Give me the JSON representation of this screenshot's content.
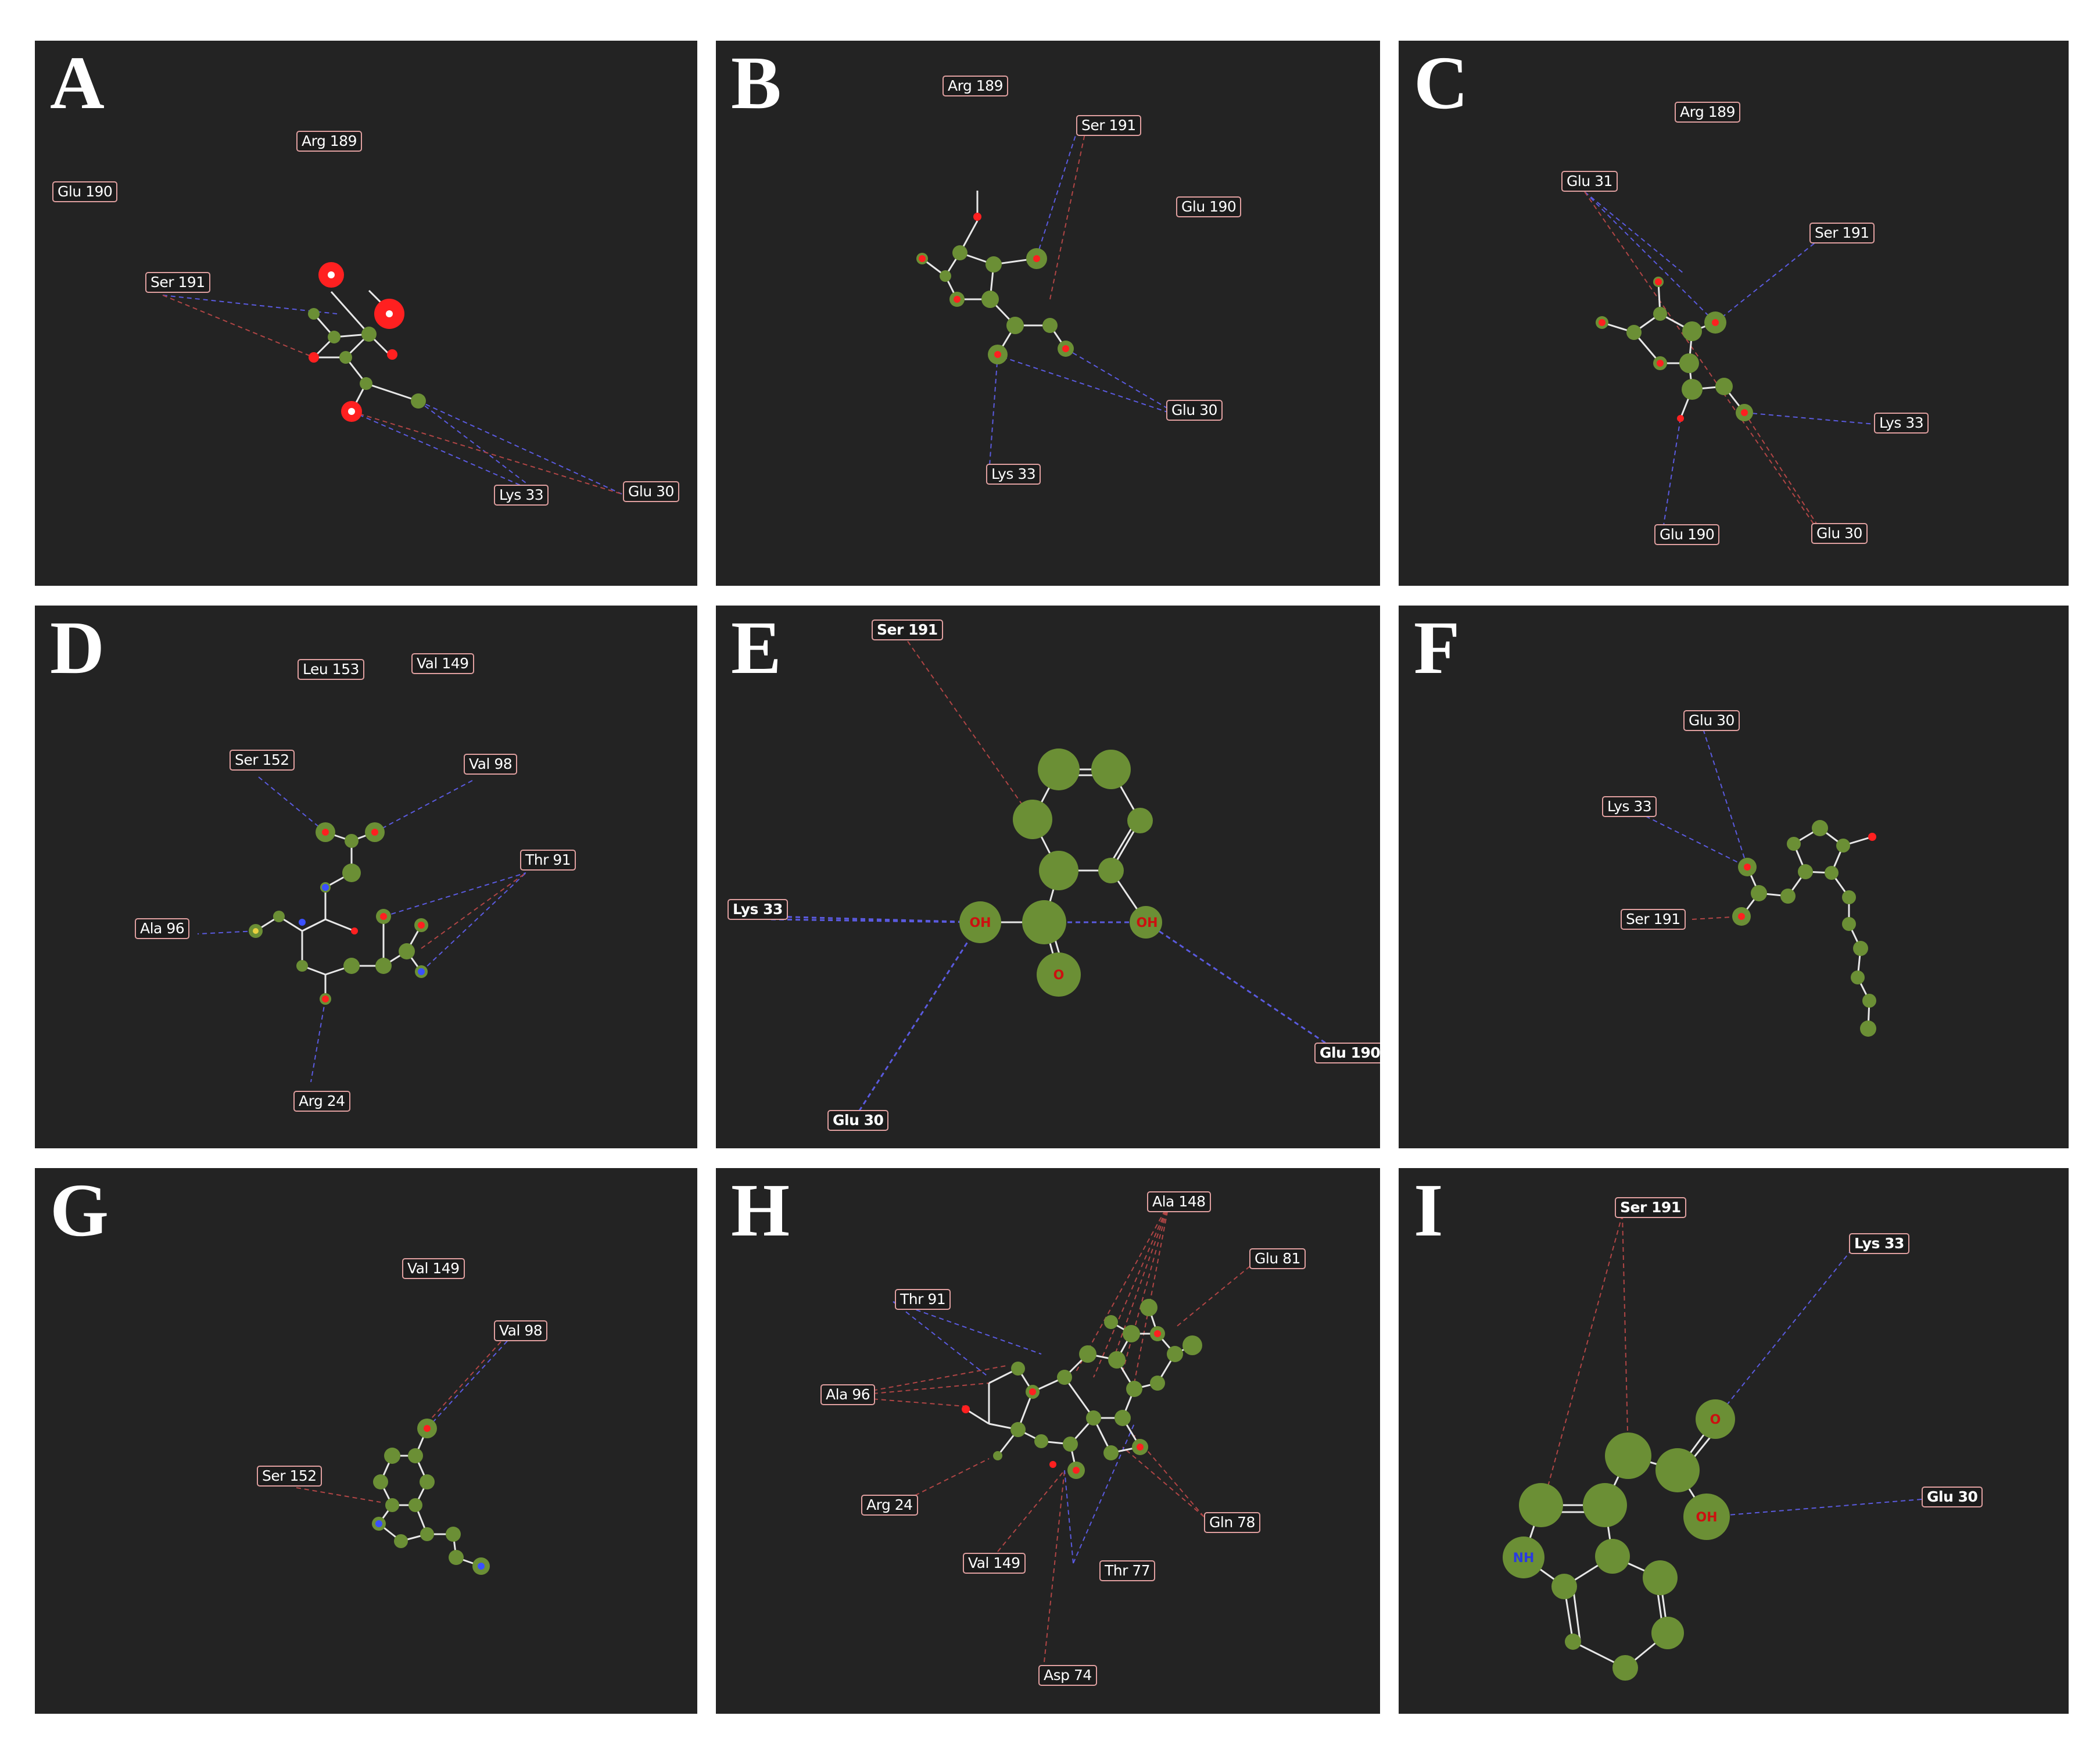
{
  "panels": [
    {
      "id": "A",
      "residues": [
        "Arg 189",
        "Glu 190",
        "Ser 191",
        "Lys 33",
        "Glu 30"
      ]
    },
    {
      "id": "B",
      "residues": [
        "Arg 189",
        "Ser 191",
        "Glu 190",
        "Glu 30",
        "Lys 33"
      ]
    },
    {
      "id": "C",
      "residues": [
        "Arg 189",
        "Glu 31",
        "Ser 191",
        "Lys 33",
        "Glu 190",
        "Glu 30"
      ]
    },
    {
      "id": "D",
      "residues": [
        "Leu 153",
        "Val 149",
        "Ser 152",
        "Val 98",
        "Thr 91",
        "Ala 96",
        "Arg 24"
      ]
    },
    {
      "id": "E",
      "residues": [
        "Ser 191",
        "Lys 33",
        "Glu 190",
        "Glu 30"
      ],
      "atom_labels": [
        "OH",
        "OH",
        "O"
      ]
    },
    {
      "id": "F",
      "residues": [
        "Glu 30",
        "Lys 33",
        "Ser 191"
      ]
    },
    {
      "id": "G",
      "residues": [
        "Val 149",
        "Val 98",
        "Ser 152"
      ]
    },
    {
      "id": "H",
      "residues": [
        "Ala 148",
        "Glu 81",
        "Thr 91",
        "Ala 96",
        "Arg 24",
        "Gln 78",
        "Val 149",
        "Thr 77",
        "Asp 74"
      ]
    },
    {
      "id": "I",
      "residues": [
        "Ser 191",
        "Lys 33",
        "Glu 30"
      ],
      "atom_labels": [
        "O",
        "OH",
        "NH"
      ]
    }
  ],
  "colors": {
    "background": "#232323",
    "ligand_sphere": "#6b8f35",
    "hbond_line": "#5a5adf",
    "hydrophobic_line": "#b04545",
    "oxygen_atom": "#ff2020",
    "nitrogen_atom": "#3a50ff",
    "bond": "#e8e8e8"
  }
}
